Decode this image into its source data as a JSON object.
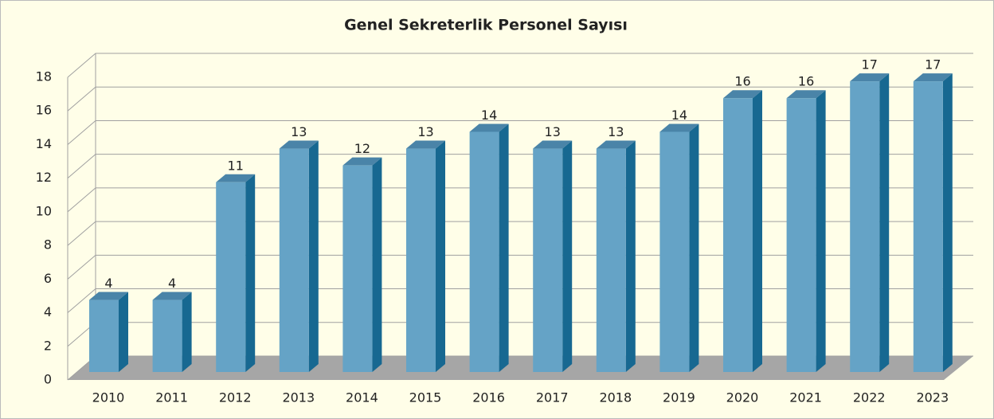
{
  "chart_data": {
    "type": "bar",
    "title": "Genel Sekreterlik Personel Sayısı",
    "categories": [
      "2010",
      "2011",
      "2012",
      "2013",
      "2014",
      "2015",
      "2016",
      "2017",
      "2018",
      "2019",
      "2020",
      "2021",
      "2022",
      "2023"
    ],
    "values": [
      4,
      4,
      11,
      13,
      12,
      13,
      14,
      13,
      13,
      14,
      16,
      16,
      17,
      17
    ],
    "color": "#65a3c6",
    "ylim": [
      0,
      18
    ],
    "yticks": [
      0,
      2,
      4,
      6,
      8,
      10,
      12,
      14,
      16,
      18
    ],
    "grid": true
  }
}
